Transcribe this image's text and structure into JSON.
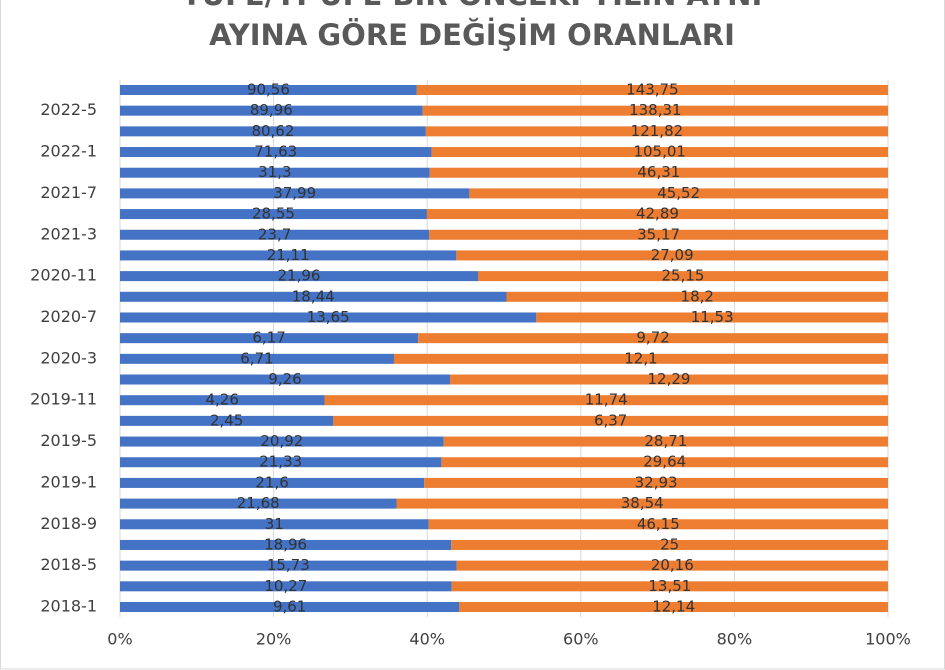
{
  "chart_data": {
    "type": "stacked-percent-barh",
    "title": [
      "TÜFE/Yİ-ÜFE BİR ÖNCEKİ YILIN AYNI",
      "AYINA GÖRE DEĞİŞİM ORANLARI"
    ],
    "categories": [
      "2018-1",
      null,
      "2018-5",
      null,
      "2018-9",
      null,
      "2019-1",
      null,
      "2019-5",
      null,
      "2019-11",
      null,
      "2020-3",
      null,
      "2020-7",
      null,
      "2020-11",
      null,
      "2021-3",
      null,
      "2021-7",
      null,
      "2022-1",
      null,
      "2022-5",
      null
    ],
    "series": [
      {
        "color": "#4472c4",
        "values": [
          9.61,
          10.27,
          15.73,
          18.96,
          31,
          21.68,
          21.6,
          21.33,
          20.92,
          2.45,
          4.26,
          9.26,
          6.71,
          6.17,
          13.65,
          18.44,
          21.96,
          21.11,
          23.7,
          28.55,
          37.99,
          31.3,
          71.63,
          80.62,
          89.96,
          90.56
        ],
        "value_labels": [
          "9,61",
          "10,27",
          "15,73",
          "18,96",
          "31",
          "21,68",
          "21,6",
          "21,33",
          "20,92",
          "2,45",
          "4,26",
          "9,26",
          "6,71",
          "6,17",
          "13,65",
          "18,44",
          "21,96",
          "21,11",
          "23,7",
          "28,55",
          "37,99",
          "31,3",
          "71,63",
          "80,62",
          "89,96",
          "90,56"
        ]
      },
      {
        "color": "#ed7d31",
        "values": [
          12.14,
          13.51,
          20.16,
          25,
          46.15,
          38.54,
          32.93,
          29.64,
          28.71,
          6.37,
          11.74,
          12.29,
          12.1,
          9.72,
          11.53,
          18.2,
          25.15,
          27.09,
          35.17,
          42.89,
          45.52,
          46.31,
          105.01,
          121.82,
          138.31,
          143.75
        ],
        "value_labels": [
          "12,14",
          "13,51",
          "20,16",
          "25",
          "46,15",
          "38,54",
          "32,93",
          "29,64",
          "28,71",
          "6,37",
          "11,74",
          "12,29",
          "12,1",
          "9,72",
          "11,53",
          "18,2",
          "25,15",
          "27,09",
          "35,17",
          "42,89",
          "45,52",
          "46,31",
          "105,01",
          "121,82",
          "138,31",
          "143,75"
        ]
      }
    ],
    "xlim": [
      0,
      100
    ],
    "xticks": [
      {
        "value": 0,
        "label": "0%"
      },
      {
        "value": 20,
        "label": "20%"
      },
      {
        "value": 40,
        "label": "40%"
      },
      {
        "value": 60,
        "label": "60%"
      },
      {
        "value": 80,
        "label": "80%"
      },
      {
        "value": 100,
        "label": "100%"
      }
    ],
    "grid": true
  }
}
